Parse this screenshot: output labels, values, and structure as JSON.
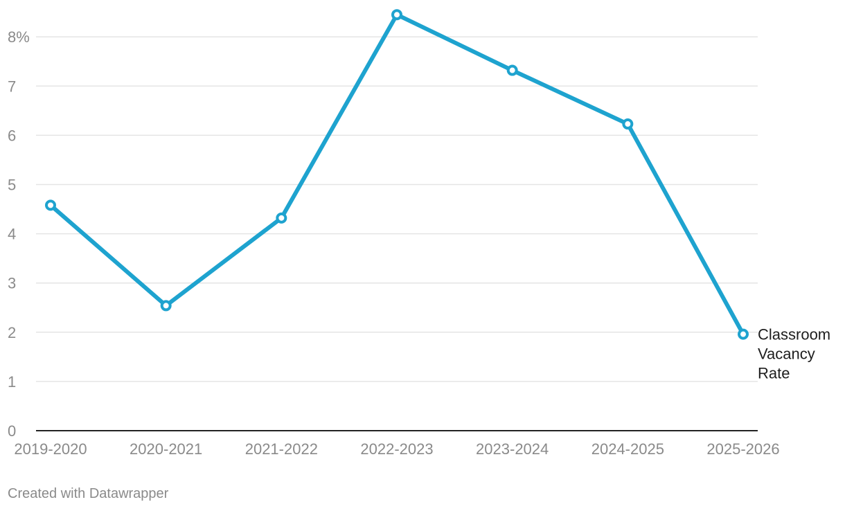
{
  "chart_data": {
    "type": "line",
    "categories": [
      "2019-2020",
      "2020-2021",
      "2021-2022",
      "2022-2023",
      "2023-2024",
      "2024-2025",
      "2025-2026"
    ],
    "series": [
      {
        "name": "Classroom Vacancy Rate",
        "label_lines": [
          "Classroom",
          "Vacancy",
          "Rate"
        ],
        "values": [
          4.58,
          2.54,
          4.32,
          8.45,
          7.32,
          6.23,
          1.96
        ],
        "color": "#1ea3cf"
      }
    ],
    "ylim": [
      0,
      8.5
    ],
    "yticks": [
      0,
      1,
      2,
      3,
      4,
      5,
      6,
      7,
      8
    ],
    "ytick_labels": [
      "0",
      "1",
      "2",
      "3",
      "4",
      "5",
      "6",
      "7",
      "8%"
    ],
    "grid": true,
    "title": "",
    "xlabel": "",
    "ylabel": ""
  },
  "footer": {
    "credit": "Created with Datawrapper"
  },
  "colors": {
    "line": "#1ea3cf",
    "grid": "#e4e4e4",
    "axis": "#222222",
    "tick_text": "#8a8a8a"
  }
}
